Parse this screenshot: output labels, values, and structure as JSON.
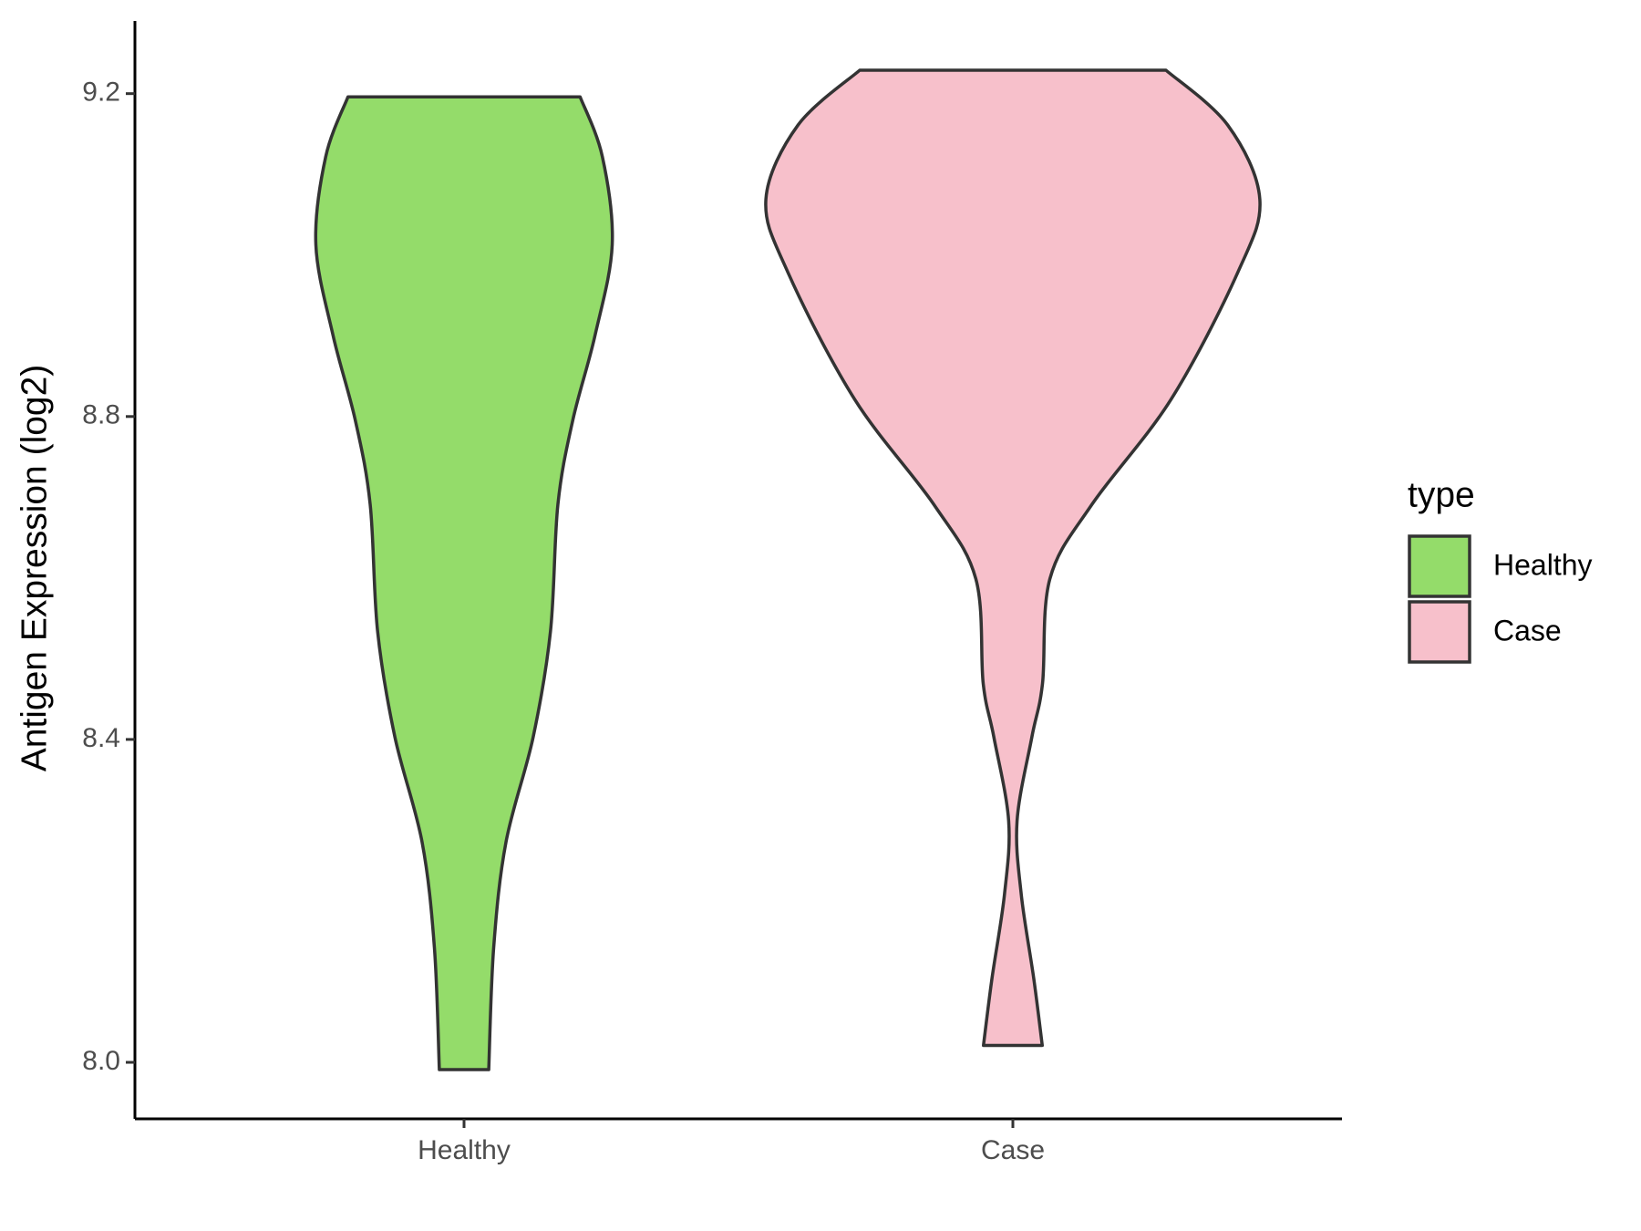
{
  "chart_data": {
    "type": "violin",
    "y_label": "Antigen Expression (log2)",
    "categories": [
      "Healthy",
      "Case"
    ],
    "legend_title": "type",
    "legend_position": "right",
    "ylim": [
      7.93,
      9.29
    ],
    "yticks": [
      {
        "value": 8,
        "label": "8.0"
      },
      8.4,
      8.8,
      9.2
    ],
    "series": [
      {
        "name": "Healthy",
        "color": "#94dc6a",
        "y": [
          9.196,
          9.122,
          9.013,
          8.9,
          8.795,
          8.691,
          8.534,
          8.403,
          8.273,
          8.142,
          7.991
        ],
        "widths": [
          0.47,
          0.56,
          0.6,
          0.53,
          0.44,
          0.38,
          0.35,
          0.28,
          0.17,
          0.12,
          0.1
        ]
      },
      {
        "name": "Case",
        "color": "#f7c0cb",
        "y": [
          9.229,
          9.161,
          9.069,
          8.978,
          8.821,
          8.691,
          8.599,
          8.469,
          8.403,
          8.299,
          8.208,
          8.103,
          8.021
        ],
        "widths": [
          0.62,
          0.87,
          1.0,
          0.91,
          0.64,
          0.32,
          0.15,
          0.12,
          0.077,
          0.017,
          0.034,
          0.085,
          0.119
        ]
      }
    ]
  }
}
